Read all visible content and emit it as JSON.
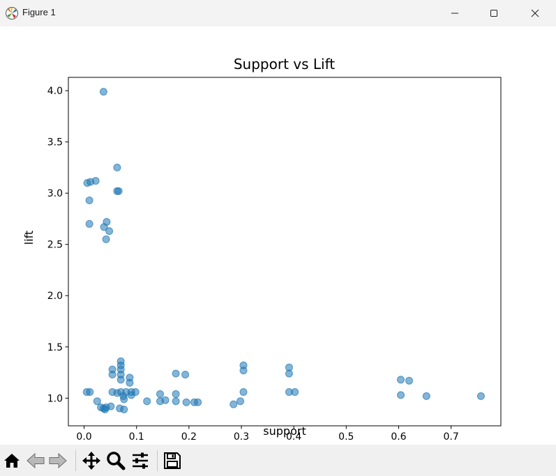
{
  "window": {
    "title": "Figure 1"
  },
  "icons": {
    "app": "matplotlib-figure-icon",
    "minimize": "minimize-icon",
    "maximize": "maximize-icon",
    "close": "close-icon"
  },
  "toolbar": {
    "buttons": [
      "home-icon",
      "back-arrow-icon",
      "forward-arrow-icon",
      "pan-icon",
      "zoom-icon",
      "configure-subplots-icon",
      "save-icon"
    ]
  },
  "colors": {
    "marker": "#1f77b4",
    "marker_alpha": 0.55,
    "axes": "#000000"
  },
  "chart_data": {
    "type": "scatter",
    "title": "Support vs Lift",
    "xlabel": "support",
    "ylabel": "lift",
    "xlim": [
      -0.03,
      0.795
    ],
    "ylim": [
      0.73,
      4.13
    ],
    "xticks": [
      0.0,
      0.1,
      0.2,
      0.3,
      0.4,
      0.5,
      0.6,
      0.7
    ],
    "xtick_labels": [
      "0.0",
      "0.1",
      "0.2",
      "0.3",
      "0.4",
      "0.5",
      "0.6",
      "0.7"
    ],
    "yticks": [
      1.0,
      1.5,
      2.0,
      2.5,
      3.0,
      3.5,
      4.0
    ],
    "ytick_labels": [
      "1.0",
      "1.5",
      "2.0",
      "2.5",
      "3.0",
      "3.5",
      "4.0"
    ],
    "grid": false,
    "points": [
      [
        0.037,
        3.99
      ],
      [
        0.063,
        3.25
      ],
      [
        0.006,
        3.1
      ],
      [
        0.012,
        3.11
      ],
      [
        0.022,
        3.12
      ],
      [
        0.063,
        3.02
      ],
      [
        0.066,
        3.02
      ],
      [
        0.01,
        2.93
      ],
      [
        0.01,
        2.7
      ],
      [
        0.043,
        2.72
      ],
      [
        0.038,
        2.67
      ],
      [
        0.048,
        2.63
      ],
      [
        0.042,
        2.55
      ],
      [
        0.07,
        1.36
      ],
      [
        0.07,
        1.32
      ],
      [
        0.054,
        1.28
      ],
      [
        0.07,
        1.28
      ],
      [
        0.054,
        1.23
      ],
      [
        0.07,
        1.23
      ],
      [
        0.087,
        1.2
      ],
      [
        0.07,
        1.18
      ],
      [
        0.087,
        1.15
      ],
      [
        0.175,
        1.24
      ],
      [
        0.193,
        1.23
      ],
      [
        0.304,
        1.32
      ],
      [
        0.304,
        1.27
      ],
      [
        0.391,
        1.3
      ],
      [
        0.391,
        1.24
      ],
      [
        0.604,
        1.18
      ],
      [
        0.62,
        1.17
      ],
      [
        0.005,
        1.06
      ],
      [
        0.011,
        1.06
      ],
      [
        0.054,
        1.06
      ],
      [
        0.063,
        1.05
      ],
      [
        0.07,
        1.06
      ],
      [
        0.08,
        1.06
      ],
      [
        0.09,
        1.06
      ],
      [
        0.098,
        1.06
      ],
      [
        0.075,
        1.02
      ],
      [
        0.09,
        1.03
      ],
      [
        0.145,
        1.04
      ],
      [
        0.175,
        1.04
      ],
      [
        0.304,
        1.06
      ],
      [
        0.391,
        1.06
      ],
      [
        0.402,
        1.06
      ],
      [
        0.604,
        1.03
      ],
      [
        0.653,
        1.02
      ],
      [
        0.757,
        1.02
      ],
      [
        0.025,
        0.97
      ],
      [
        0.076,
        0.99
      ],
      [
        0.12,
        0.97
      ],
      [
        0.145,
        0.97
      ],
      [
        0.155,
        0.98
      ],
      [
        0.175,
        0.97
      ],
      [
        0.195,
        0.96
      ],
      [
        0.21,
        0.96
      ],
      [
        0.217,
        0.96
      ],
      [
        0.298,
        0.97
      ],
      [
        0.285,
        0.94
      ],
      [
        0.032,
        0.91
      ],
      [
        0.037,
        0.9
      ],
      [
        0.042,
        0.91
      ],
      [
        0.051,
        0.92
      ],
      [
        0.04,
        0.89
      ],
      [
        0.068,
        0.9
      ],
      [
        0.076,
        0.89
      ]
    ]
  }
}
